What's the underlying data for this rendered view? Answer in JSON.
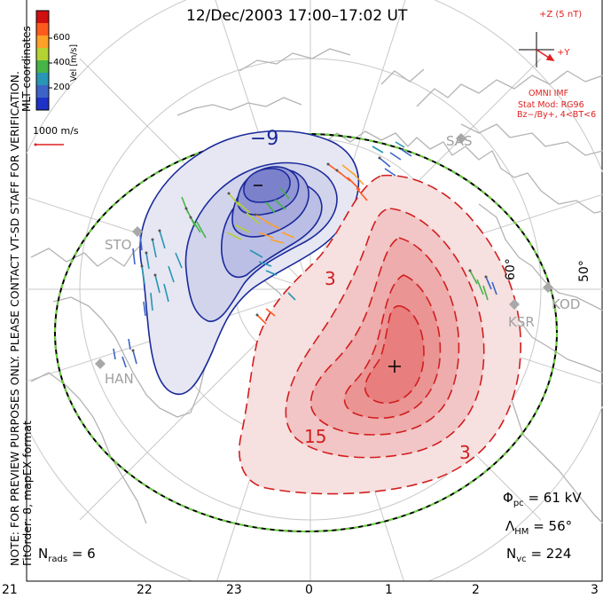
{
  "title": "12/Dec/2003 17:00–17:02 UT",
  "side_note": "NOTE: FOR PREVIEW PURPOSES ONLY. PLEASE CONTACT VT-SD STAFF FOR VERIFICATION.",
  "fit_order": "FitOrder: 8, mapEX format",
  "coords_label": "MLT coordinates",
  "colorbar": {
    "label": "Vel [m/s]",
    "ticks": [
      "600",
      "400",
      "200"
    ],
    "colors": [
      "#d01010",
      "#ff5a1e",
      "#ffa028",
      "#b4d232",
      "#46b446",
      "#2896b4",
      "#3c64c8",
      "#1e32c8"
    ]
  },
  "velocity_scale": "1000 m/s",
  "imf": {
    "bz_label": "+Z (5 nT)",
    "by_label": "+Y",
    "source": "OMNI IMF",
    "model_line1": "Stat Mod: RG96",
    "model_line2": "Bz−/By+, 4<BT<6"
  },
  "stations": [
    {
      "code": "SAS"
    },
    {
      "code": "STO"
    },
    {
      "code": "HAN"
    },
    {
      "code": "KSR"
    },
    {
      "code": "KOD"
    }
  ],
  "lat_labels": [
    "60°",
    "50°"
  ],
  "contour_labels": {
    "neg": "−9",
    "pos1": "3",
    "pos2": "15",
    "pos3": "3"
  },
  "stats": {
    "pcp_symbol": "Φ",
    "pcp_sub": "pc",
    "pcp_value": "=  61  kV",
    "hm_symbol": "Λ",
    "hm_sub": "HM",
    "hm_value": "=  56°",
    "nvc_symbol": "N",
    "nvc_sub": "vc",
    "nvc_value": "=  224",
    "nrads_symbol": "N",
    "nrads_sub": "rads",
    "nrads_value": "=  6"
  },
  "mlt_ticks": [
    "21",
    "22",
    "23",
    "0",
    "1",
    "2",
    "3"
  ],
  "potential_extrema": {
    "min_marker": "−",
    "max_marker": "+"
  }
}
